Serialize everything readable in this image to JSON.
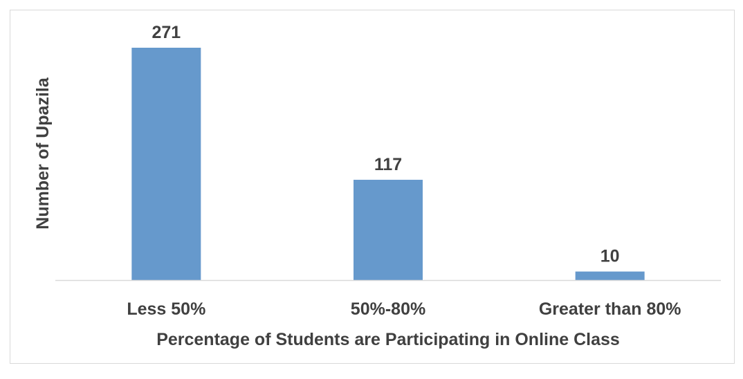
{
  "chart_data": {
    "type": "bar",
    "categories": [
      "Less 50%",
      "50%-80%",
      "Greater than 80%"
    ],
    "values": [
      271,
      117,
      10
    ],
    "data_labels": [
      "271",
      "117",
      "10"
    ],
    "title": "",
    "xlabel": "Percentage of Students are Participating in Online Class",
    "ylabel": "Number of Upazila",
    "ylim": [
      0,
      271
    ],
    "grid": false,
    "legend": "none",
    "bar_color": "#6699cc"
  }
}
